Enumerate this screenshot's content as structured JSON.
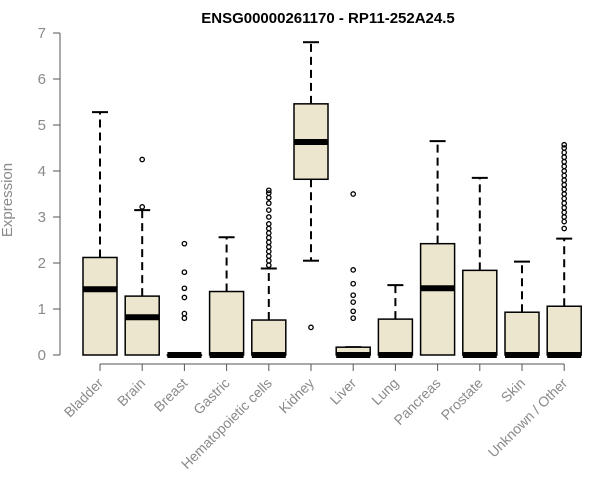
{
  "chart_data": {
    "type": "box",
    "title": "ENSG00000261170 - RP11-252A24.5",
    "ylabel": "Expression",
    "xlabel": "",
    "ylim": [
      0,
      7
    ],
    "yticks": [
      0,
      1,
      2,
      3,
      4,
      5,
      6,
      7
    ],
    "grid": false,
    "colors": {
      "box_fill": "#ede6cf",
      "box_stroke": "#000000",
      "axis_text": "#8a8a8a"
    },
    "categories": [
      "Bladder",
      "Brain",
      "Breast",
      "Gastric",
      "Hematopoietic cells",
      "Kidney",
      "Liver",
      "Lung",
      "Pancreas",
      "Prostate",
      "Skin",
      "Unknown / Other"
    ],
    "boxes": [
      {
        "category": "Bladder",
        "whisker_low": 0,
        "q1": 0,
        "median": 1.43,
        "q3": 2.12,
        "whisker_high": 5.28,
        "outliers": []
      },
      {
        "category": "Brain",
        "whisker_low": 0,
        "q1": 0,
        "median": 0.82,
        "q3": 1.28,
        "whisker_high": 3.15,
        "outliers": [
          3.22,
          4.25
        ]
      },
      {
        "category": "Breast",
        "whisker_low": 0,
        "q1": 0,
        "median": 0,
        "q3": 0,
        "whisker_high": 0,
        "outliers": [
          0.8,
          0.9,
          1.25,
          1.45,
          1.8,
          2.42
        ]
      },
      {
        "category": "Gastric",
        "whisker_low": 0,
        "q1": 0,
        "median": 0,
        "q3": 1.38,
        "whisker_high": 2.56,
        "outliers": []
      },
      {
        "category": "Hematopoietic cells",
        "whisker_low": 0,
        "q1": 0,
        "median": 0,
        "q3": 0.76,
        "whisker_high": 1.88,
        "outliers": [
          1.95,
          2.05,
          2.15,
          2.25,
          2.35,
          2.45,
          2.55,
          2.65,
          2.75,
          2.85,
          3.0,
          3.15,
          3.3,
          3.42,
          3.52,
          3.58
        ]
      },
      {
        "category": "Kidney",
        "whisker_low": 2.05,
        "q1": 3.82,
        "median": 4.63,
        "q3": 5.46,
        "whisker_high": 6.8,
        "outliers": [
          0.6
        ]
      },
      {
        "category": "Liver",
        "whisker_low": 0,
        "q1": 0,
        "median": 0,
        "q3": 0.17,
        "whisker_high": 0.17,
        "outliers": [
          0.8,
          0.95,
          1.15,
          1.3,
          1.55,
          1.85,
          3.5
        ]
      },
      {
        "category": "Lung",
        "whisker_low": 0,
        "q1": 0,
        "median": 0,
        "q3": 0.78,
        "whisker_high": 1.52,
        "outliers": []
      },
      {
        "category": "Pancreas",
        "whisker_low": 0,
        "q1": 0,
        "median": 1.45,
        "q3": 2.42,
        "whisker_high": 4.65,
        "outliers": []
      },
      {
        "category": "Prostate",
        "whisker_low": 0,
        "q1": 0,
        "median": 0,
        "q3": 1.84,
        "whisker_high": 3.85,
        "outliers": []
      },
      {
        "category": "Skin",
        "whisker_low": 0,
        "q1": 0,
        "median": 0,
        "q3": 0.93,
        "whisker_high": 2.03,
        "outliers": []
      },
      {
        "category": "Unknown / Other",
        "whisker_low": 0,
        "q1": 0,
        "median": 0,
        "q3": 1.06,
        "whisker_high": 2.53,
        "outliers": [
          2.75,
          2.9,
          3.0,
          3.1,
          3.2,
          3.3,
          3.4,
          3.5,
          3.6,
          3.7,
          3.8,
          3.9,
          4.0,
          4.1,
          4.2,
          4.3,
          4.4,
          4.5,
          4.57
        ]
      }
    ]
  }
}
